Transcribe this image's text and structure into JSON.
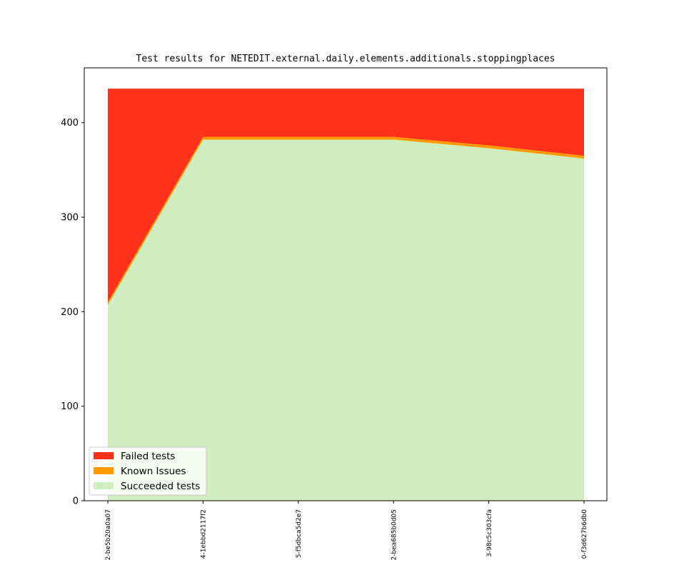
{
  "chart_data": {
    "type": "area",
    "stacked": true,
    "title": "Test results for NETEDIT.external.daily.elements.additionals.stoppingplaces",
    "xlabel": "",
    "ylabel": "",
    "categories": [
      "2-be5b20a0a07",
      "4-1ebbd2117f2",
      "5-f5dbca5d2e7",
      "2-bea685b0d05",
      "3-98c5c303cfa",
      "0-f3d627b6db0"
    ],
    "series": [
      {
        "name": "Succeeded tests",
        "color": "#cfedbe",
        "values": [
          207,
          382,
          382,
          382,
          373,
          362
        ]
      },
      {
        "name": "Known Issues",
        "color": "#ff9900",
        "values": [
          3,
          3,
          3,
          3,
          3,
          3
        ]
      },
      {
        "name": "Failed tests",
        "color": "#ff311a",
        "values": [
          226,
          51,
          51,
          51,
          60,
          71
        ]
      }
    ],
    "ylim": [
      0,
      458
    ],
    "yticks": [
      "0",
      "100",
      "200",
      "300",
      "400"
    ],
    "ytick_values": [
      0,
      100,
      200,
      300,
      400
    ],
    "grid": false,
    "legend_placement": "lower-left",
    "legend_order": [
      "Failed tests",
      "Known Issues",
      "Succeeded tests"
    ]
  }
}
